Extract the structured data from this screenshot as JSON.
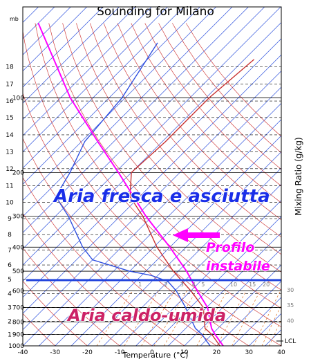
{
  "chart_data": {
    "type": "skew-t",
    "title": "Sounding for Milano",
    "pressure_unit": "mb",
    "xlabel": "Temperature (°C)",
    "y2label": "Mixing Ratio (g/kg)",
    "xlim": [
      -40,
      40
    ],
    "xticks": [
      -40,
      -30,
      -20,
      -10,
      0,
      10,
      20,
      30,
      40
    ],
    "ylim": [
      1000,
      43
    ],
    "yticks": [
      100,
      200,
      300,
      400,
      500,
      600,
      700,
      800,
      900,
      1000
    ],
    "log_y": true,
    "height_ticks": [
      {
        "value": 899,
        "label": "1"
      },
      {
        "value": 795,
        "label": "2"
      },
      {
        "value": 701,
        "label": "3"
      },
      {
        "value": 616,
        "label": "4"
      },
      {
        "value": 540,
        "label": "5"
      },
      {
        "value": 472,
        "label": "6"
      },
      {
        "value": 411,
        "label": "7"
      },
      {
        "value": 356,
        "label": "8"
      },
      {
        "value": 307,
        "label": "9"
      },
      {
        "value": 264,
        "label": "10"
      },
      {
        "value": 226,
        "label": "11"
      },
      {
        "value": 193,
        "label": "12"
      },
      {
        "value": 165,
        "label": "13"
      },
      {
        "value": 141,
        "label": "14"
      },
      {
        "value": 120,
        "label": "15"
      },
      {
        "value": 103,
        "label": "16"
      },
      {
        "value": 88,
        "label": "17"
      },
      {
        "value": 75,
        "label": "18"
      }
    ],
    "mixing_ratios": [
      1,
      2,
      3,
      4,
      5,
      10,
      15,
      20,
      30,
      35,
      40
    ],
    "lcl_label": "LCL",
    "series": [
      {
        "color": "#c83232",
        "pressures": [
          1000,
          900,
          850,
          700,
          600,
          500,
          400,
          300,
          250,
          200,
          150,
          100,
          70
        ],
        "values": [
          21,
          15,
          11,
          4,
          -5,
          -16.5,
          -29,
          -43,
          -53,
          -60,
          -59,
          -59,
          -57
        ]
      },
      {
        "color": "#3050e0",
        "pressures": [
          1000,
          950,
          900,
          850,
          700,
          600,
          550,
          520,
          500,
          450,
          400,
          300,
          250,
          200,
          150,
          100,
          60
        ],
        "values": [
          18,
          15,
          12,
          8,
          -1.5,
          -9.5,
          -15,
          -22,
          -30,
          -45,
          -52,
          -66,
          -76,
          -79,
          -84,
          -86,
          -92
        ]
      },
      {
        "color": "#ff00ff",
        "pressures": [
          1000,
          900,
          850,
          700,
          600,
          500,
          400,
          300,
          200,
          150,
          100,
          50
        ],
        "values": [
          22,
          16,
          13,
          5.3,
          -3,
          -12.4,
          -25,
          -42,
          -64,
          -80,
          -102,
          -135
        ]
      }
    ],
    "annotations": [
      "Aria fresca e asciutta",
      "Profilo",
      "instabile",
      "Aria caldo-umida"
    ]
  }
}
